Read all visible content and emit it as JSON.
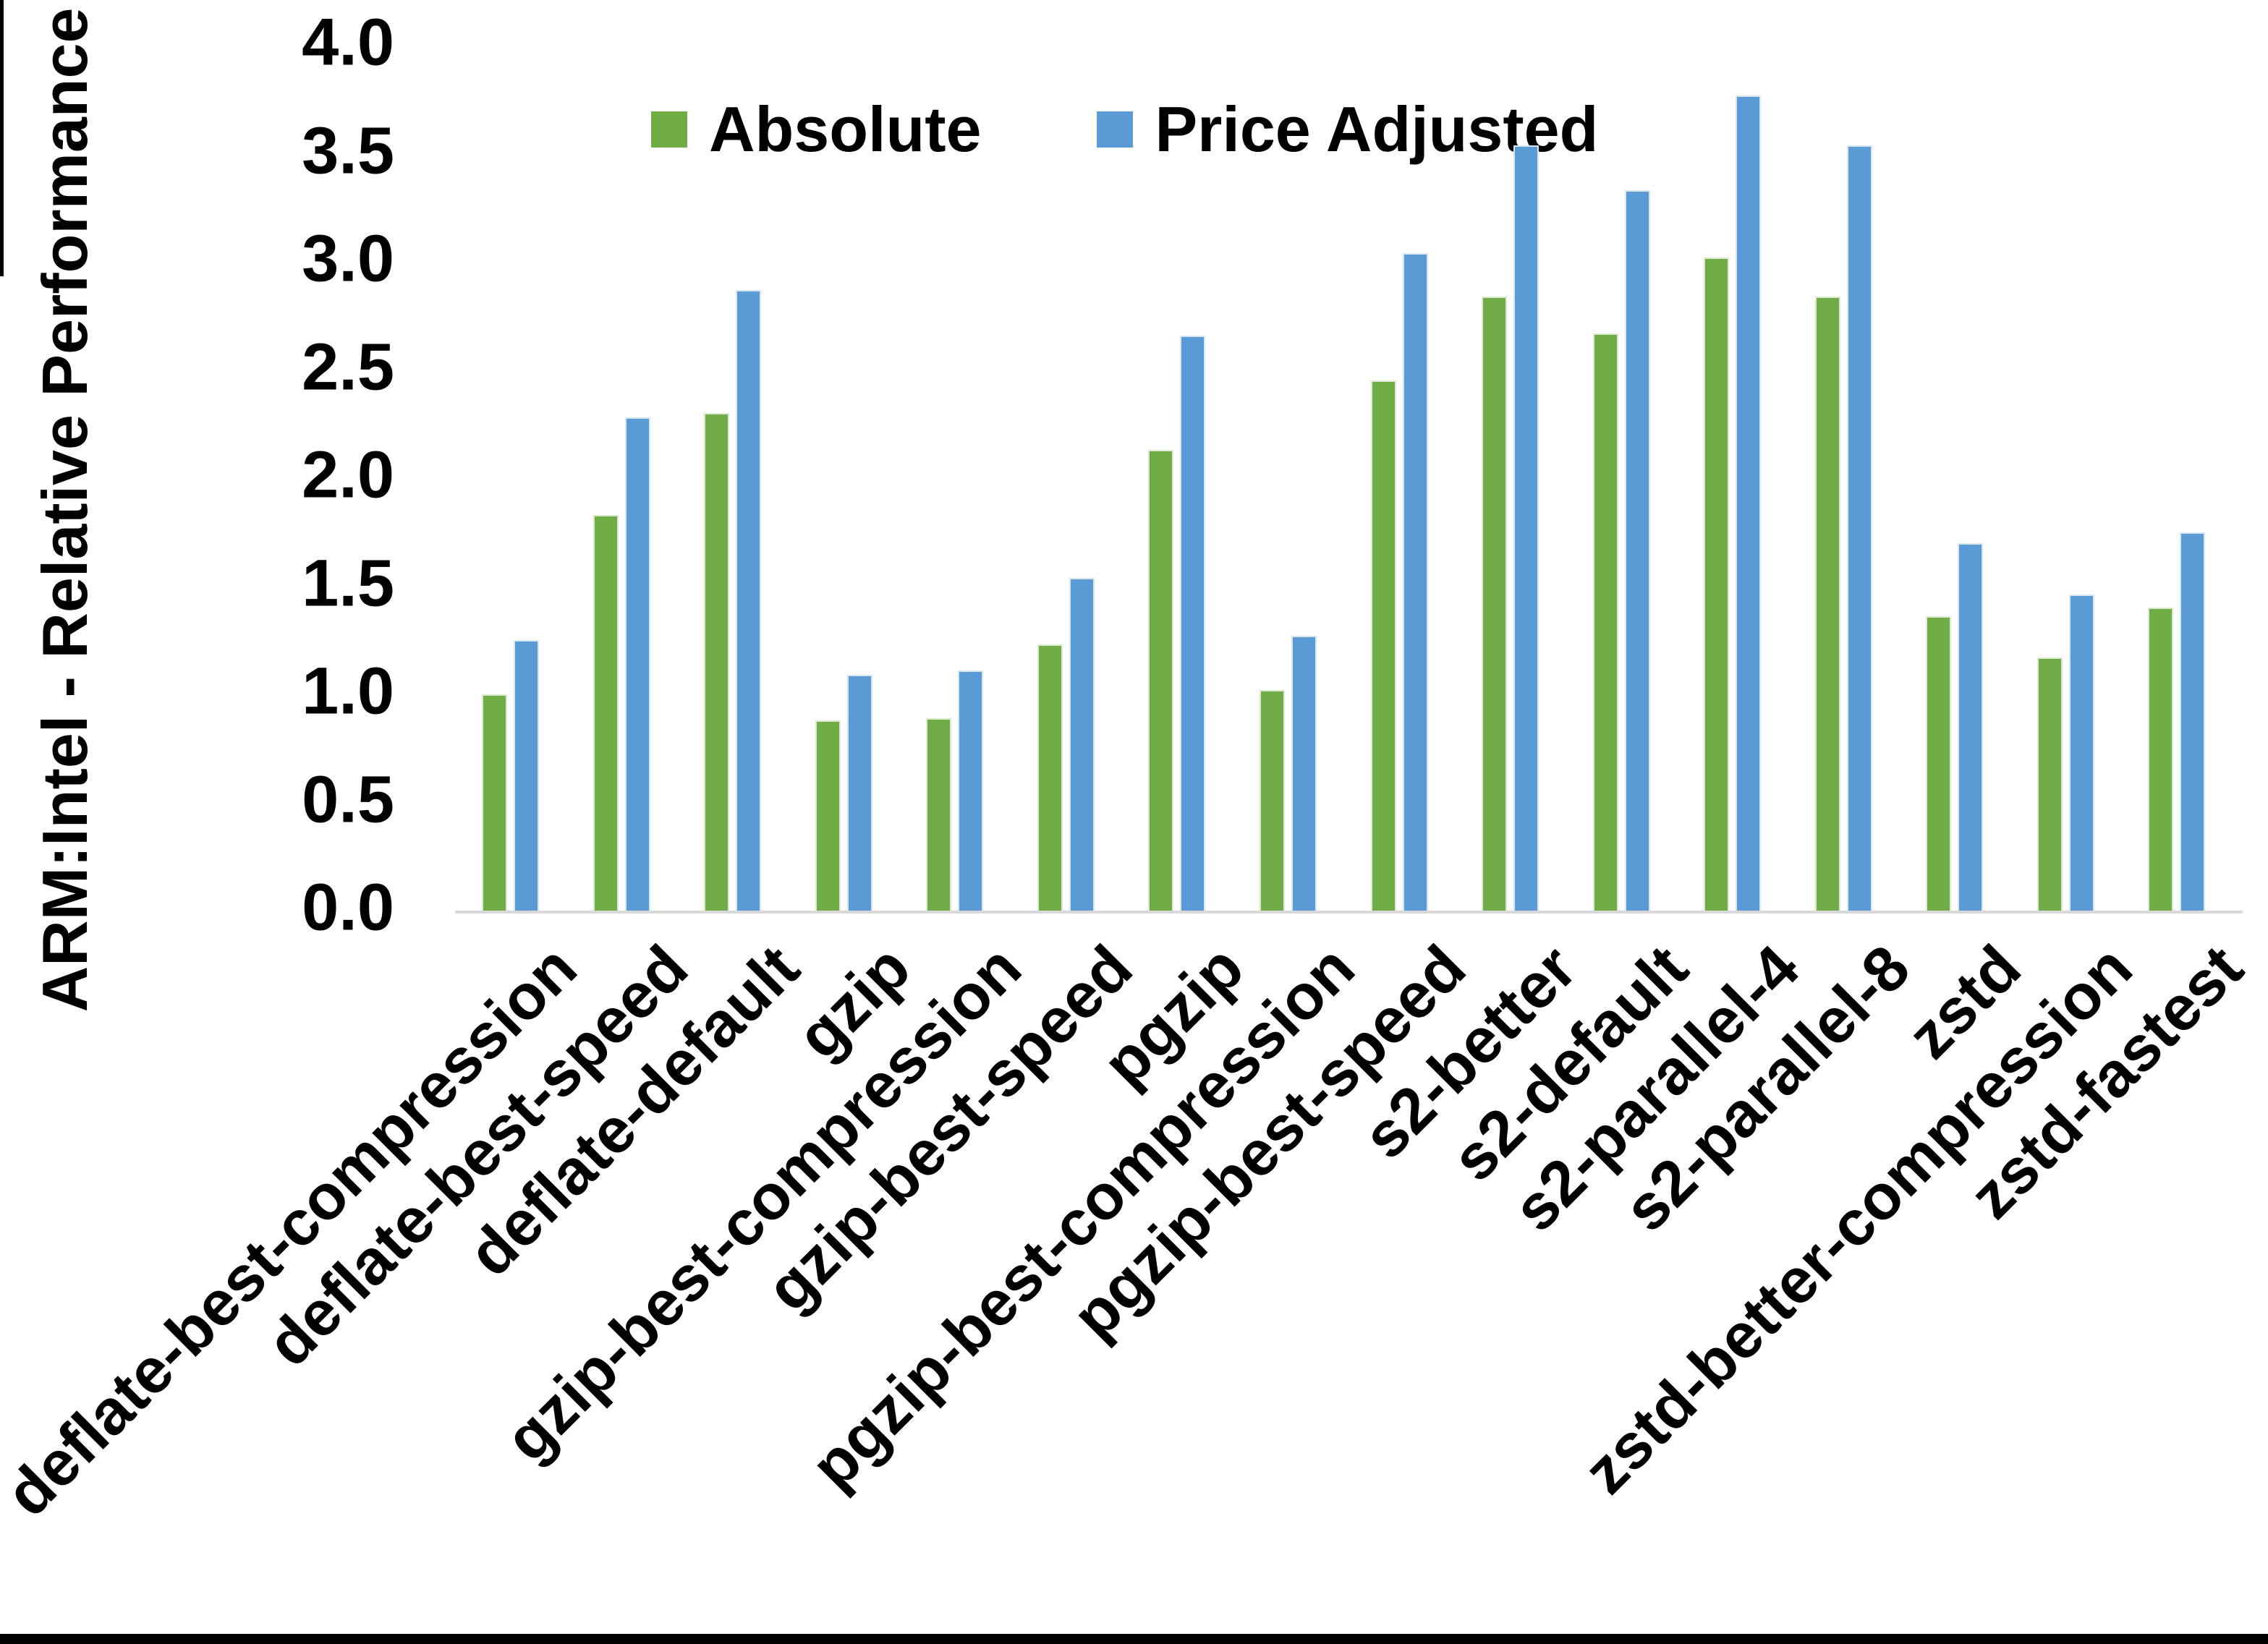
{
  "chart_data": {
    "type": "bar",
    "title": "",
    "ylabel": "ARM:Intel - Relative Performance",
    "xlabel": "",
    "ylim": [
      0,
      4
    ],
    "yticks": [
      "0.0",
      "0.5",
      "1.0",
      "1.5",
      "2.0",
      "2.5",
      "3.0",
      "3.5",
      "4.0"
    ],
    "grid": false,
    "legend_position": "top-center",
    "axis_line_color": "#D9D9D9",
    "text_color": "#000000",
    "categories": [
      "deflate-best-compression",
      "deflate-best-speed",
      "deflate-default",
      "gzip",
      "gzip-best-compression",
      "gzip-best-speed",
      "pgzip",
      "pgzip-best-compression",
      "pgzip-best-speed",
      "s2-better",
      "s2-default",
      "s2-parallel-4",
      "s2-parallel-8",
      "zstd",
      "zstd-better-compression",
      "zstd-fastest"
    ],
    "series": [
      {
        "name": "Absolute",
        "color": "#70AD47",
        "values": [
          1.0,
          1.83,
          2.3,
          0.88,
          0.89,
          1.23,
          2.13,
          1.02,
          2.45,
          2.84,
          2.67,
          3.02,
          2.84,
          1.36,
          1.17,
          1.4
        ]
      },
      {
        "name": "Price Adjusted",
        "color": "#5B9BD5",
        "values": [
          1.25,
          2.28,
          2.87,
          1.09,
          1.11,
          1.54,
          2.66,
          1.27,
          3.04,
          3.54,
          3.33,
          3.77,
          3.54,
          1.7,
          1.46,
          1.75
        ]
      }
    ]
  }
}
